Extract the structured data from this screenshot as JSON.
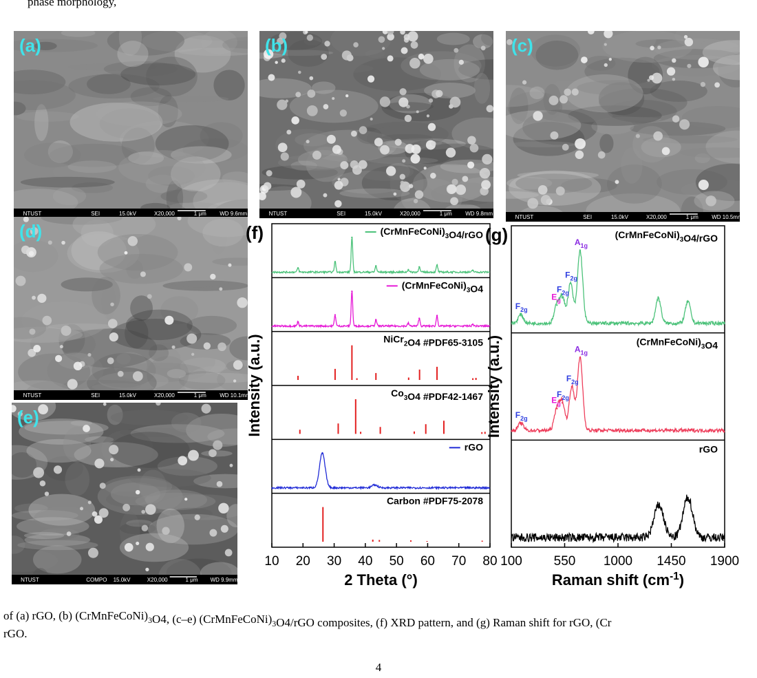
{
  "header": {
    "text": "phase morphology,"
  },
  "sem_panels": [
    {
      "label": "(a)",
      "info": [
        "NTUST",
        "SEI",
        "15.0kV",
        "X20,000",
        "1 μm",
        "WD 9.6mm"
      ]
    },
    {
      "label": "(b)",
      "info": [
        "NTUST",
        "SEI",
        "15.0kV",
        "X20,000",
        "1 μm",
        "WD 9.8mm"
      ]
    },
    {
      "label": "(c)",
      "info": [
        "NTUST",
        "SEI",
        "15.0kV",
        "X20,000",
        "1 μm",
        "WD 10.5mm"
      ]
    },
    {
      "label": "(d)",
      "info": [
        "NTUST",
        "SEI",
        "15.0kV",
        "X20,000",
        "1 μm",
        "WD 10.1mm"
      ]
    },
    {
      "label": "(e)",
      "info": [
        "NTUST",
        "COMPO",
        "15.0kV",
        "X20,000",
        "1 μm",
        "WD 9.9mm"
      ]
    }
  ],
  "xrd": {
    "label": "(f)",
    "xlabel": "2 Theta (°)",
    "ylabel": "Intensity (a.u.)",
    "xlim": [
      10,
      80
    ],
    "xticks": [
      10,
      20,
      30,
      40,
      50,
      60,
      70,
      80
    ],
    "panels": [
      {
        "name": "(CrMnFeCoNi)3O4/rGO",
        "color": "#4cc27a",
        "style": "line",
        "legend_line": true,
        "peak_width": 0.25,
        "peaks": [
          [
            18.4,
            0.12
          ],
          [
            30.3,
            0.3
          ],
          [
            35.7,
            1
          ],
          [
            43.4,
            0.18
          ],
          [
            53.8,
            0.07
          ],
          [
            57.3,
            0.15
          ],
          [
            63,
            0.2
          ],
          [
            74.5,
            0.05
          ]
        ]
      },
      {
        "name": "(CrMnFeCoNi)3O4",
        "color": "#e619d6",
        "style": "line",
        "legend_line": true,
        "peak_width": 0.25,
        "peaks": [
          [
            18.4,
            0.12
          ],
          [
            30.3,
            0.32
          ],
          [
            35.7,
            1
          ],
          [
            43.4,
            0.18
          ],
          [
            53.8,
            0.08
          ],
          [
            57.3,
            0.22
          ],
          [
            63,
            0.3
          ],
          [
            74.5,
            0.05
          ]
        ]
      },
      {
        "name": "NiCr2O4 #PDF65-3105",
        "color": "#e32020",
        "style": "stick",
        "legend_line": false,
        "peaks": [
          [
            18.4,
            0.12
          ],
          [
            30.3,
            0.32
          ],
          [
            35.7,
            1
          ],
          [
            37.3,
            0.05
          ],
          [
            43.4,
            0.2
          ],
          [
            53.9,
            0.07
          ],
          [
            57.4,
            0.3
          ],
          [
            63,
            0.38
          ],
          [
            74.5,
            0.05
          ],
          [
            75.5,
            0.06
          ]
        ]
      },
      {
        "name": "Co3O4 #PDF42-1467",
        "color": "#e32020",
        "style": "stick",
        "legend_line": false,
        "peaks": [
          [
            19,
            0.12
          ],
          [
            31.3,
            0.3
          ],
          [
            36.9,
            1
          ],
          [
            38.5,
            0.06
          ],
          [
            44.8,
            0.2
          ],
          [
            55.7,
            0.07
          ],
          [
            59.4,
            0.28
          ],
          [
            65.2,
            0.38
          ],
          [
            77.4,
            0.05
          ],
          [
            78.4,
            0.06
          ]
        ]
      },
      {
        "name": "rGO",
        "color": "#1f2ad6",
        "style": "line",
        "legend_line": true,
        "peak_width": 0.9,
        "peaks": [
          [
            26.2,
            1
          ],
          [
            43,
            0.08
          ]
        ]
      },
      {
        "name": "Carbon #PDF75-2078",
        "color": "#e32020",
        "style": "stick",
        "legend_line": false,
        "peaks": [
          [
            26.4,
            1
          ],
          [
            42.4,
            0.06
          ],
          [
            44.5,
            0.05
          ],
          [
            54.6,
            0.04
          ],
          [
            59.8,
            0.02
          ],
          [
            77.5,
            0.03
          ]
        ]
      }
    ]
  },
  "raman": {
    "label": "(g)",
    "xlabel": "Raman shift (cm-1)",
    "ylabel": "Intensity (a.u.)",
    "xlim": [
      100,
      1900
    ],
    "xticks": [
      100,
      550,
      1000,
      1450,
      1900
    ],
    "panels": [
      {
        "name": "(CrMnFeCoNi)3O4/rGO",
        "color": "#4cc27a",
        "peak_width": 22,
        "peaks": [
          {
            "x": 180,
            "height": 0.12,
            "label": "F2g",
            "label_color": "#2f3fe0"
          },
          {
            "x": 485,
            "height": 0.25,
            "label": "Eg",
            "label_color": "#e619d6"
          },
          {
            "x": 530,
            "height": 0.35,
            "label": "F2g",
            "label_color": "#2f3fe0"
          },
          {
            "x": 600,
            "height": 0.55,
            "label": "F2g",
            "label_color": "#2f3fe0"
          },
          {
            "x": 680,
            "height": 1,
            "label": "A1g",
            "label_color": "#8a2be2"
          },
          {
            "x": 1340,
            "height": 0.35
          },
          {
            "x": 1590,
            "height": 0.3
          }
        ]
      },
      {
        "name": "(CrMnFeCoNi)3O4",
        "color": "#ee3f5c",
        "peak_width": 22,
        "peaks": [
          {
            "x": 180,
            "height": 0.1,
            "label": "F2g",
            "label_color": "#2f3fe0"
          },
          {
            "x": 485,
            "height": 0.3,
            "label": "Eg",
            "label_color": "#e619d6"
          },
          {
            "x": 530,
            "height": 0.38,
            "label": "F2g",
            "label_color": "#2f3fe0"
          },
          {
            "x": 610,
            "height": 0.6,
            "label": "F2g",
            "label_color": "#2f3fe0"
          },
          {
            "x": 680,
            "height": 1,
            "label": "A1g",
            "label_color": "#8a2be2"
          }
        ]
      },
      {
        "name": "rGO",
        "color": "#000000",
        "peak_width": 40,
        "peaks": [
          {
            "x": 1345,
            "height": 0.45
          },
          {
            "x": 1590,
            "height": 0.55
          }
        ]
      }
    ]
  },
  "caption": {
    "line1": "of (a) rGO, (b) (CrMnFeCoNi)3O4, (c–e) (CrMnFeCoNi)3O4/rGO composites, (f) XRD pattern, and (g) Raman shift for rGO, (Cr",
    "line2": "rGO."
  },
  "page_number": "4"
}
